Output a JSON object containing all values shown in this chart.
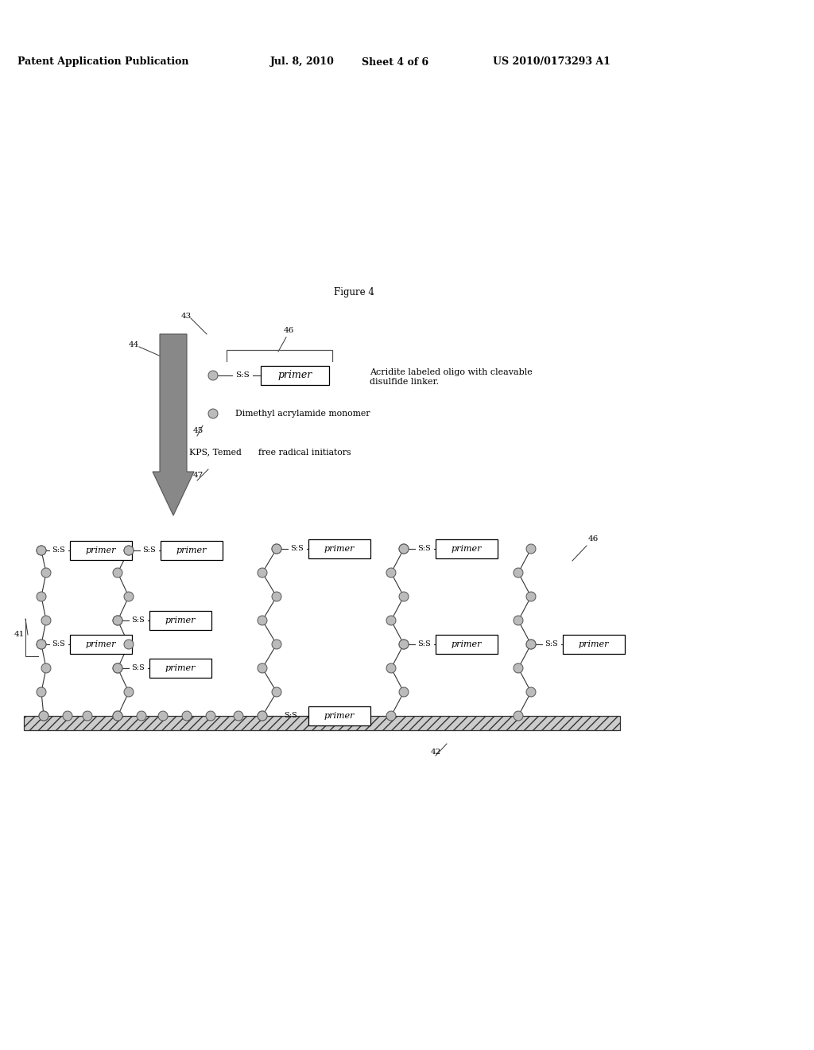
{
  "bg_color": "#ffffff",
  "header_text": "Patent Application Publication",
  "header_date": "Jul. 8, 2010",
  "header_sheet": "Sheet 4 of 6",
  "header_patent": "US 2010/0173293 A1",
  "figure_label": "Figure 4",
  "annotation_46_text": "Acridite labeled oligo with cleavable\ndisulfide linker.",
  "annotation_45_text": "Dimethyl acrylamide monomer",
  "annotation_kps_text": "KPS, Temed      free radical initiators",
  "node_color": "#bbbbbb",
  "node_edge": "#555555",
  "line_color": "#333333",
  "arrow_color": "#888888",
  "surface_color": "#dddddd",
  "primer_box_color": "#ffffff",
  "primer_box_edge": "#000000"
}
